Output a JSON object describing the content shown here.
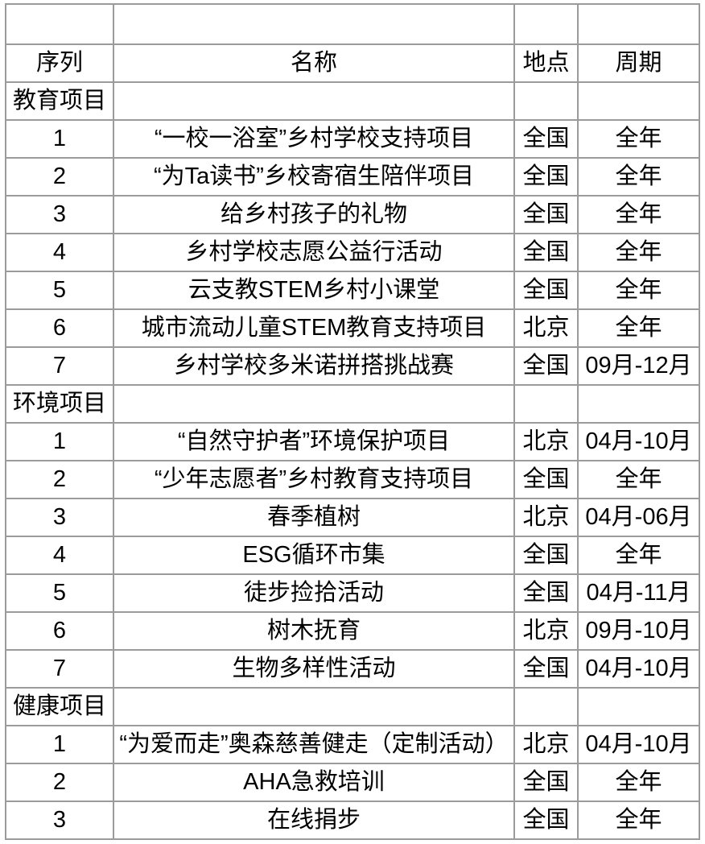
{
  "colors": {
    "background": "#ffffff",
    "border": "#9b9b9b",
    "text": "#000000"
  },
  "table": {
    "columns": [
      {
        "key": "seq",
        "label": "序列"
      },
      {
        "key": "name",
        "label": "名称"
      },
      {
        "key": "location",
        "label": "地点"
      },
      {
        "key": "period",
        "label": "周期"
      }
    ],
    "sections": [
      {
        "title": "教育项目",
        "rows": [
          {
            "seq": "1",
            "name": "“一校一浴室”乡村学校支持项目",
            "location": "全国",
            "period": "全年"
          },
          {
            "seq": "2",
            "name": "“为Ta读书”乡校寄宿生陪伴项目",
            "location": "全国",
            "period": "全年"
          },
          {
            "seq": "3",
            "name": "给乡村孩子的礼物",
            "location": "全国",
            "period": "全年"
          },
          {
            "seq": "4",
            "name": "乡村学校志愿公益行活动",
            "location": "全国",
            "period": "全年"
          },
          {
            "seq": "5",
            "name": "云支教STEM乡村小课堂",
            "location": "全国",
            "period": "全年"
          },
          {
            "seq": "6",
            "name": "城市流动儿童STEM教育支持项目",
            "location": "北京",
            "period": "全年"
          },
          {
            "seq": "7",
            "name": "乡村学校多米诺拼搭挑战赛",
            "location": "全国",
            "period": "09月-12月"
          }
        ]
      },
      {
        "title": "环境项目",
        "rows": [
          {
            "seq": "1",
            "name": "“自然守护者”环境保护项目",
            "location": "北京",
            "period": "04月-10月"
          },
          {
            "seq": "2",
            "name": "“少年志愿者”乡村教育支持项目",
            "location": "全国",
            "period": "全年"
          },
          {
            "seq": "3",
            "name": "春季植树",
            "location": "北京",
            "period": "04月-06月"
          },
          {
            "seq": "4",
            "name": "ESG循环市集",
            "location": "全国",
            "period": "全年"
          },
          {
            "seq": "5",
            "name": "徒步捡拾活动",
            "location": "全国",
            "period": "04月-11月"
          },
          {
            "seq": "6",
            "name": "树木抚育",
            "location": "北京",
            "period": "09月-10月"
          },
          {
            "seq": "7",
            "name": "生物多样性活动",
            "location": "全国",
            "period": "04月-10月"
          }
        ]
      },
      {
        "title": "健康项目",
        "rows": [
          {
            "seq": "1",
            "name": "“为爱而走”奥森慈善健走（定制活动）",
            "location": "北京",
            "period": "04月-10月"
          },
          {
            "seq": "2",
            "name": "AHA急救培训",
            "location": "全国",
            "period": "全年"
          },
          {
            "seq": "3",
            "name": "在线捐步",
            "location": "全国",
            "period": "全年"
          }
        ]
      }
    ]
  }
}
